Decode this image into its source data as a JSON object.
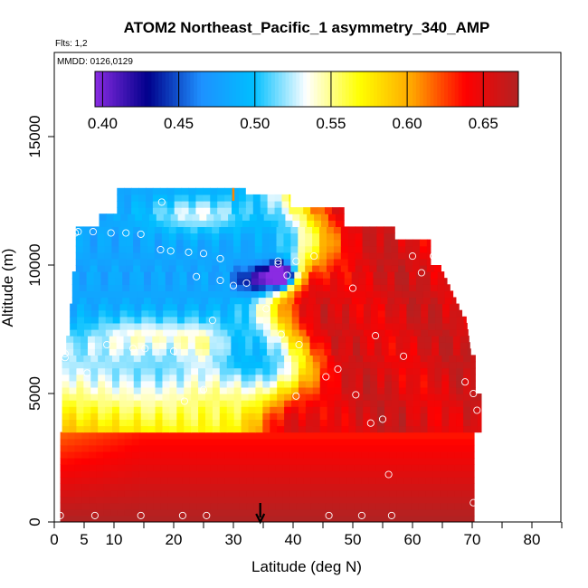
{
  "chart_data": {
    "type": "heatmap",
    "title": "ATOM2 Northeast_Pacific_1 asymmetry_340_AMP",
    "subtitle_flights": "Flts: 1,2",
    "subtitle_dates": "MMDD: 0126,0129",
    "xlabel": "Latitude (deg N)",
    "ylabel": "Altitude (m)",
    "xlim": [
      0,
      85
    ],
    "ylim": [
      0,
      17500
    ],
    "x_ticks": [
      0,
      5,
      10,
      20,
      30,
      40,
      50,
      60,
      70,
      80
    ],
    "x_ticks_unlabeled": [
      15,
      25,
      35,
      45,
      55,
      65,
      75,
      85
    ],
    "y_ticks": [
      0,
      5000,
      10000,
      15000
    ],
    "colorbar": {
      "range": [
        0.395,
        0.673
      ],
      "ticks": [
        0.4,
        0.45,
        0.5,
        0.55,
        0.6,
        0.65
      ],
      "tick_labels": [
        "0.40",
        "0.45",
        "0.50",
        "0.55",
        "0.60",
        "0.65"
      ],
      "colors": [
        "#8a2be2",
        "#00008b",
        "#1e90ff",
        "#00bfff",
        "#ffffff",
        "#ffff00",
        "#ffa500",
        "#ff0000",
        "#b22222"
      ]
    },
    "marker_latitude": 34.5,
    "sample_points": [
      [
        1,
        250
      ],
      [
        6.8,
        250
      ],
      [
        14.5,
        250
      ],
      [
        21.5,
        250
      ],
      [
        25.5,
        250
      ],
      [
        46,
        250
      ],
      [
        51.5,
        250
      ],
      [
        56.5,
        250
      ],
      [
        70.2,
        750
      ],
      [
        56,
        1850
      ],
      [
        53,
        3850
      ],
      [
        55,
        4000
      ],
      [
        70.8,
        4350
      ],
      [
        70.2,
        5000
      ],
      [
        21.8,
        4700
      ],
      [
        25,
        5150
      ],
      [
        40.5,
        4900
      ],
      [
        50.5,
        4950
      ],
      [
        5.5,
        5800
      ],
      [
        45.5,
        5650
      ],
      [
        47.5,
        5950
      ],
      [
        68.8,
        5450
      ],
      [
        1.8,
        6400
      ],
      [
        1.8,
        6550
      ],
      [
        8.8,
        6900
      ],
      [
        13.2,
        6750
      ],
      [
        15.2,
        6750
      ],
      [
        20,
        6650
      ],
      [
        41,
        6900
      ],
      [
        58.5,
        6450
      ],
      [
        26.5,
        7850
      ],
      [
        38,
        7300
      ],
      [
        53.8,
        7250
      ],
      [
        35.5,
        8300
      ],
      [
        30,
        9200
      ],
      [
        32.2,
        9300
      ],
      [
        23.8,
        9550
      ],
      [
        27.8,
        9400
      ],
      [
        39,
        9600
      ],
      [
        50,
        9100
      ],
      [
        37.5,
        10050
      ],
      [
        37.5,
        10150
      ],
      [
        40.5,
        10150
      ],
      [
        61.5,
        9700
      ],
      [
        19.5,
        10550
      ],
      [
        22.5,
        10500
      ],
      [
        25,
        10450
      ],
      [
        27.8,
        10250
      ],
      [
        43.5,
        10350
      ],
      [
        60,
        10350
      ],
      [
        63.5,
        10350
      ],
      [
        17.8,
        10600
      ],
      [
        3.5,
        11250
      ],
      [
        6.5,
        11300
      ],
      [
        9.5,
        11250
      ],
      [
        12,
        11250
      ],
      [
        14.5,
        11200
      ],
      [
        18,
        12450
      ],
      [
        69.5,
        10950
      ],
      [
        4,
        11300
      ]
    ]
  }
}
